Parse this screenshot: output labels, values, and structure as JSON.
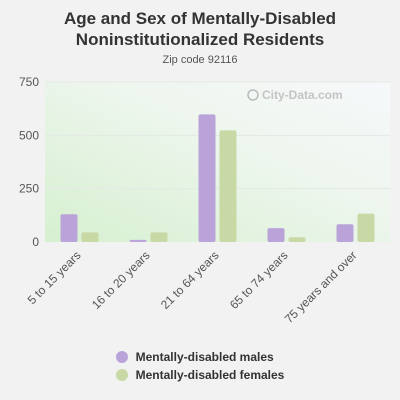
{
  "chart_data": {
    "type": "bar",
    "title_lines": [
      "Age and Sex of Mentally-Disabled",
      "Noninstitutionalized Residents"
    ],
    "subtitle": "Zip code 92116",
    "categories": [
      "5 to 15 years",
      "16 to 20 years",
      "21 to 64 years",
      "65 to 74 years",
      "75 years and over"
    ],
    "series": [
      {
        "name": "Mentally-disabled males",
        "color": "#b9a3d9",
        "values": [
          130,
          10,
          598,
          65,
          83
        ]
      },
      {
        "name": "Mentally-disabled females",
        "color": "#c8d9a6",
        "values": [
          45,
          45,
          523,
          22,
          133
        ]
      }
    ],
    "yticks": [
      "0",
      "250",
      "500",
      "750"
    ],
    "ylim": [
      0,
      750
    ],
    "grid": true,
    "legend_position": "bottom"
  },
  "watermark": "City-Data.com"
}
